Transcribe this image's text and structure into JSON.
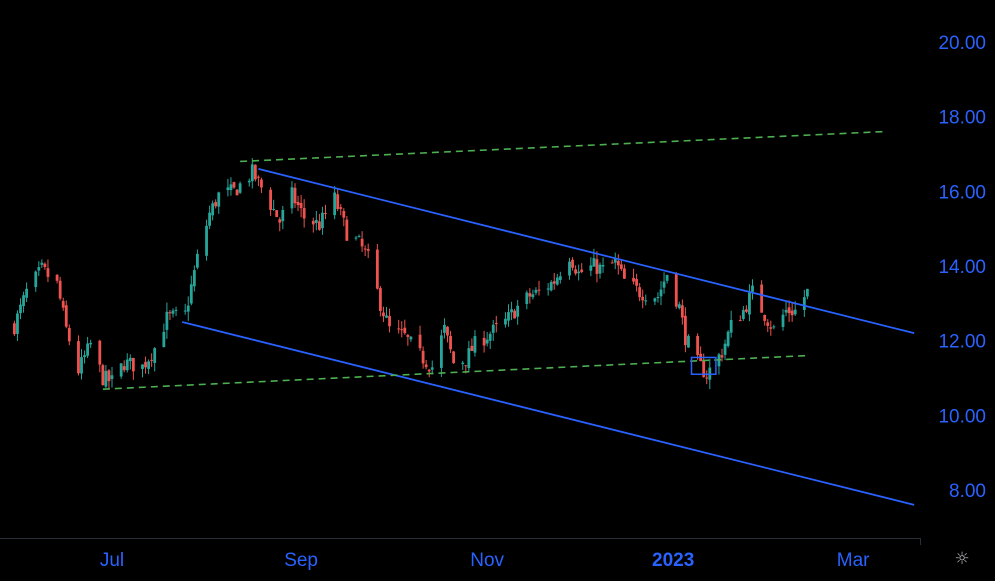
{
  "chart_data": {
    "type": "candlestick",
    "y_axis": {
      "ticks": [
        "20.00",
        "18.00",
        "16.00",
        "14.00",
        "12.00",
        "10.00",
        "8.00"
      ],
      "tick_values": [
        20,
        18,
        16,
        14,
        12,
        10,
        8
      ]
    },
    "x_axis": {
      "ticks": [
        {
          "label": "Jul",
          "date": "2022-07-01",
          "bold": false
        },
        {
          "label": "Sep",
          "date": "2022-09-01",
          "bold": false
        },
        {
          "label": "Nov",
          "date": "2022-11-01",
          "bold": false
        },
        {
          "label": "2023",
          "date": "2023-01-01",
          "bold": true
        },
        {
          "label": "Mar",
          "date": "2023-03-01",
          "bold": false
        }
      ]
    },
    "close_path": [
      [
        "2022-05-30",
        12.4
      ],
      [
        "2022-06-03",
        13.3
      ],
      [
        "2022-06-08",
        13.9
      ],
      [
        "2022-06-13",
        13.5
      ],
      [
        "2022-06-16",
        12.3
      ],
      [
        "2022-06-20",
        11.2
      ],
      [
        "2022-06-24",
        11.9
      ],
      [
        "2022-06-28",
        11.0
      ],
      [
        "2022-07-01",
        10.9
      ],
      [
        "2022-07-05",
        11.4
      ],
      [
        "2022-07-11",
        11.3
      ],
      [
        "2022-07-15",
        11.8
      ],
      [
        "2022-07-19",
        12.6
      ],
      [
        "2022-07-25",
        12.7
      ],
      [
        "2022-07-29",
        14.2
      ],
      [
        "2022-08-02",
        15.4
      ],
      [
        "2022-08-05",
        15.9
      ],
      [
        "2022-08-10",
        16.0
      ],
      [
        "2022-08-16",
        16.5
      ],
      [
        "2022-08-19",
        16.1
      ],
      [
        "2022-08-25",
        15.2
      ],
      [
        "2022-08-29",
        15.9
      ],
      [
        "2022-09-02",
        15.3
      ],
      [
        "2022-09-07",
        15.1
      ],
      [
        "2022-09-12",
        15.8
      ],
      [
        "2022-09-16",
        14.9
      ],
      [
        "2022-09-20",
        14.6
      ],
      [
        "2022-09-23",
        14.2
      ],
      [
        "2022-09-27",
        13.0
      ],
      [
        "2022-09-30",
        12.3
      ],
      [
        "2022-10-05",
        12.1
      ],
      [
        "2022-10-10",
        11.6
      ],
      [
        "2022-10-14",
        11.3
      ],
      [
        "2022-10-18",
        12.3
      ],
      [
        "2022-10-21",
        11.4
      ],
      [
        "2022-10-25",
        11.5
      ],
      [
        "2022-10-28",
        11.9
      ],
      [
        "2022-11-02",
        12.2
      ],
      [
        "2022-11-07",
        12.5
      ],
      [
        "2022-11-11",
        12.9
      ],
      [
        "2022-11-15",
        13.2
      ],
      [
        "2022-11-18",
        13.3
      ],
      [
        "2022-11-23",
        13.6
      ],
      [
        "2022-11-28",
        14.3
      ],
      [
        "2022-12-01",
        13.8
      ],
      [
        "2022-12-06",
        14.0
      ],
      [
        "2022-12-09",
        13.9
      ],
      [
        "2022-12-13",
        14.1
      ],
      [
        "2022-12-16",
        13.6
      ],
      [
        "2022-12-21",
        13.3
      ],
      [
        "2022-12-27",
        13.2
      ],
      [
        "2022-12-30",
        13.8
      ],
      [
        "2023-01-03",
        12.9
      ],
      [
        "2023-01-05",
        12.1
      ],
      [
        "2023-01-09",
        11.4
      ],
      [
        "2023-01-12",
        11.1
      ],
      [
        "2023-01-17",
        11.7
      ],
      [
        "2023-01-20",
        12.4
      ],
      [
        "2023-01-24",
        12.8
      ],
      [
        "2023-01-27",
        13.3
      ],
      [
        "2023-01-31",
        12.7
      ],
      [
        "2023-02-03",
        12.3
      ],
      [
        "2023-02-07",
        12.8
      ],
      [
        "2023-02-10",
        12.8
      ],
      [
        "2023-02-14",
        13.3
      ]
    ],
    "drawings": [
      {
        "name": "upper-channel-line",
        "style": "solid",
        "color": "#2962ff",
        "from": [
          "2022-08-18",
          16.6
        ],
        "to": [
          "2023-03-21",
          12.2
        ]
      },
      {
        "name": "lower-channel-line",
        "style": "solid",
        "color": "#2962ff",
        "from": [
          "2022-07-24",
          12.5
        ],
        "to": [
          "2023-03-21",
          7.6
        ]
      },
      {
        "name": "upper-dashed-trendline",
        "style": "dashed",
        "color": "#4caf50",
        "from": [
          "2022-08-12",
          16.8
        ],
        "to": [
          "2023-03-11",
          17.6
        ]
      },
      {
        "name": "lower-dashed-trendline",
        "style": "dashed",
        "color": "#4caf50",
        "from": [
          "2022-06-28",
          10.7
        ],
        "to": [
          "2023-02-14",
          11.6
        ]
      },
      {
        "name": "small-rectangle",
        "style": "rect",
        "color": "#2962ff",
        "from": [
          "2023-01-07",
          11.55
        ],
        "to": [
          "2023-01-15",
          11.1
        ]
      }
    ],
    "colors": {
      "up": "#26a69a",
      "down": "#ef5350",
      "axis_text": "#2962ff",
      "background": "#000000"
    },
    "grid": false
  },
  "icons": {
    "settings": "gear-icon"
  }
}
